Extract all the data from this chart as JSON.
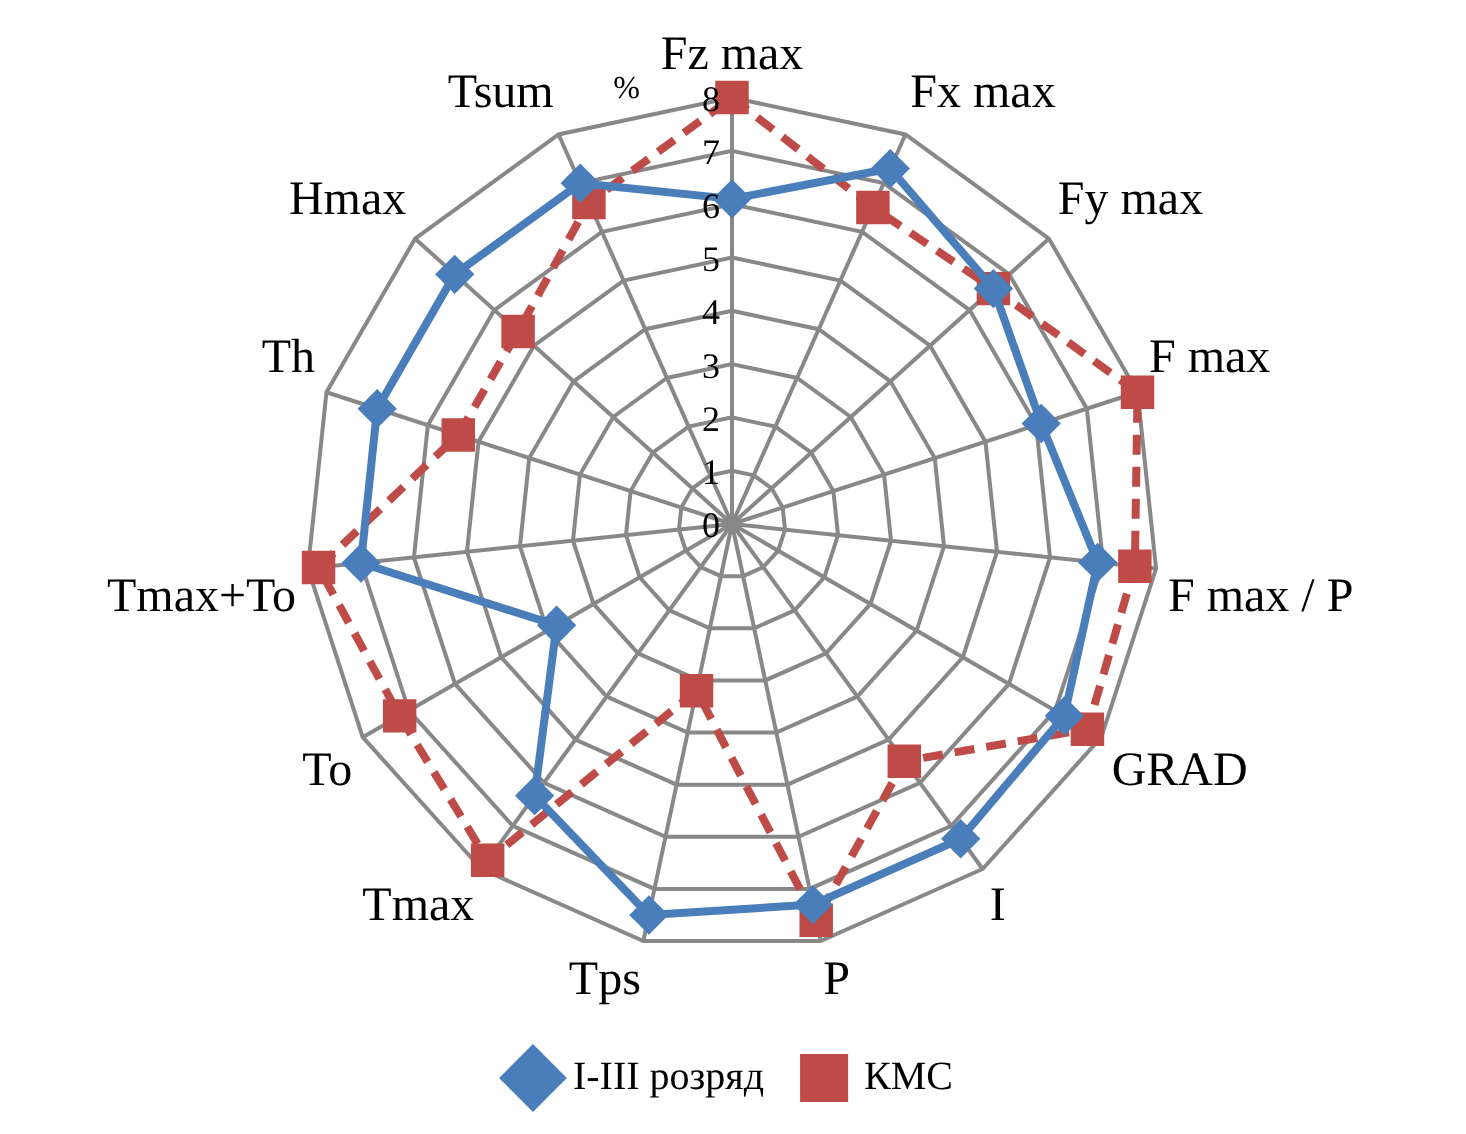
{
  "chart_data": {
    "type": "radar",
    "ylabel": "%",
    "categories": [
      "Fz max",
      "Fx max",
      "Fy max",
      "F max",
      "F max / P",
      "GRAD",
      "I",
      "P",
      "Tps",
      "Tmax",
      "To",
      "Tmax+To",
      "Th",
      "Hmax",
      "Tsum"
    ],
    "series": [
      {
        "name": "I-III розряд",
        "color": "#4a7ebb",
        "marker": "diamond",
        "line_style": "solid",
        "values": [
          6.1,
          7.3,
          6.6,
          6.1,
          6.9,
          7.2,
          7.3,
          7.3,
          7.5,
          6.3,
          3.8,
          7.0,
          7.0,
          7.0,
          7.0
        ]
      },
      {
        "name": "КМС",
        "color": "#be4b48",
        "marker": "square",
        "line_style": "dashed",
        "values": [
          8.0,
          6.5,
          6.6,
          8.0,
          7.6,
          7.7,
          5.5,
          7.6,
          3.2,
          7.8,
          7.2,
          7.8,
          5.4,
          5.4,
          6.6
        ]
      }
    ],
    "ylim": [
      0,
      8
    ],
    "yticks": [
      0,
      1,
      2,
      3,
      4,
      5,
      6,
      7,
      8
    ],
    "grid": true,
    "legend": "bottom"
  }
}
